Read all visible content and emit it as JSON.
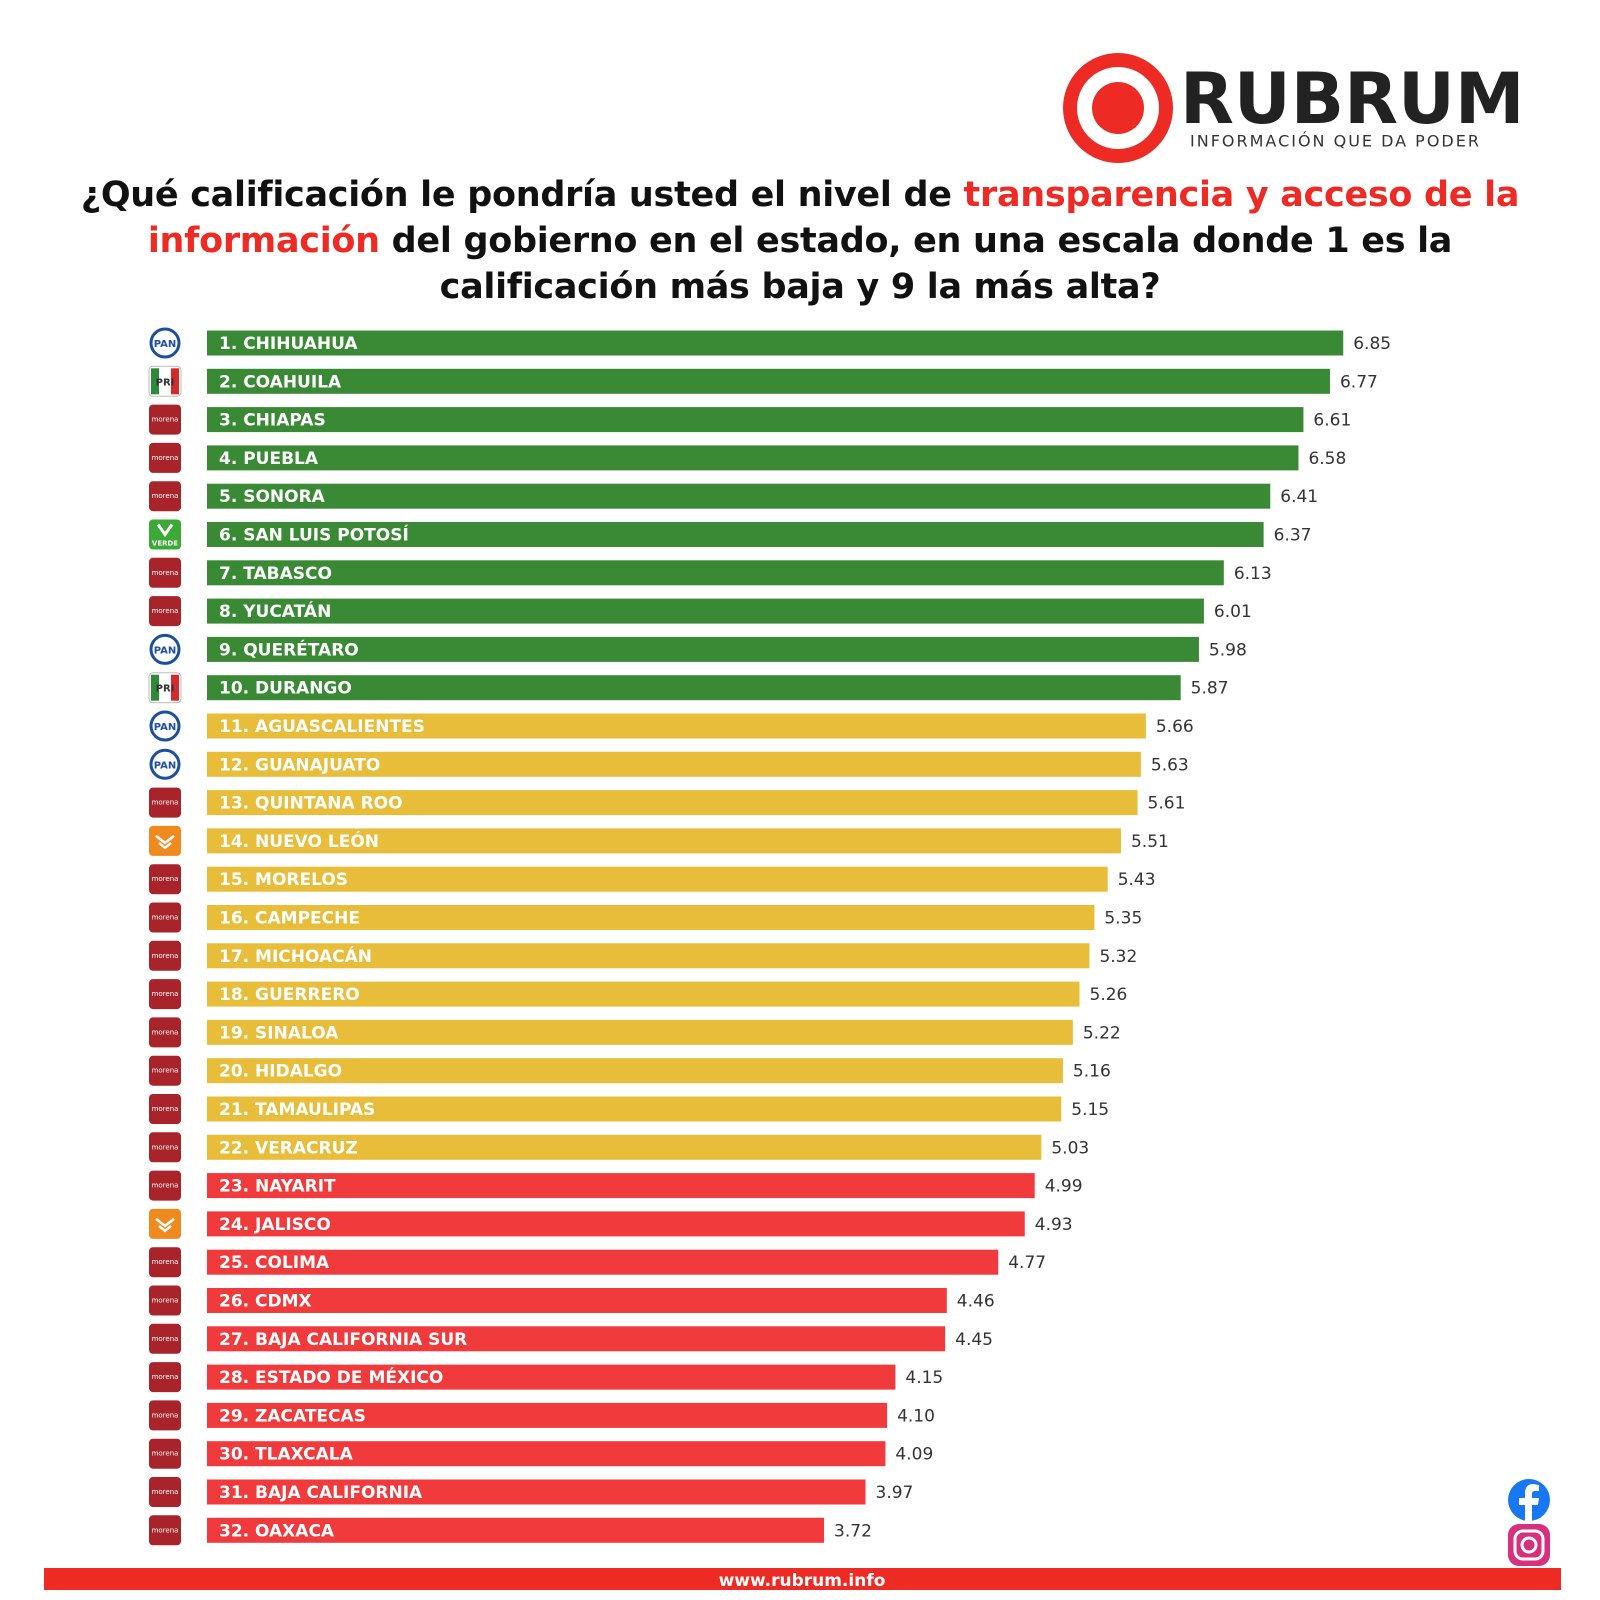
{
  "chart_data": {
    "type": "bar",
    "orientation": "horizontal",
    "brand": "RUBRUM",
    "tagline": "INFORMACIÓN QUE DA PODER",
    "title": [
      "¿Qué calificación le pondría usted el nivel de ",
      "transparencia y acceso de la información",
      " del gobierno en el estado, en una escala donde 1 es la calificación más baja y 9 la más alta?"
    ],
    "footer": "www.rubrum.info",
    "categories": [
      "1. CHIHUAHUA",
      "2. COAHUILA",
      "3. CHIAPAS",
      "4. PUEBLA",
      "5. SONORA",
      "6. SAN LUIS POTOSÍ",
      "7. TABASCO",
      "8. YUCATÁN",
      "9. QUERÉTARO",
      "10. DURANGO",
      "11. AGUASCALIENTES",
      "12. GUANAJUATO",
      "13. QUINTANA ROO",
      "14. NUEVO LEÓN",
      "15. MORELOS",
      "16. CAMPECHE",
      "17. MICHOACÁN",
      "18. GUERRERO",
      "19. SINALOA",
      "20. HIDALGO",
      "21. TAMAULIPAS",
      "22. VERACRUZ",
      "23. NAYARIT",
      "24. JALISCO",
      "25. COLIMA",
      "26. CDMX",
      "27. BAJA CALIFORNIA SUR",
      "28. ESTADO DE MÉXICO",
      "29. ZACATECAS",
      "30. TLAXCALA",
      "31. BAJA CALIFORNIA",
      "32. OAXACA"
    ],
    "values": [
      6.85,
      6.77,
      6.61,
      6.58,
      6.41,
      6.37,
      6.13,
      6.01,
      5.98,
      5.87,
      5.66,
      5.63,
      5.61,
      5.51,
      5.43,
      5.35,
      5.32,
      5.26,
      5.22,
      5.16,
      5.15,
      5.03,
      4.99,
      4.93,
      4.77,
      4.46,
      4.45,
      4.15,
      4.1,
      4.09,
      3.97,
      3.72
    ],
    "value_labels": [
      "6.85",
      "6.77",
      "6.61",
      "6.58",
      "6.41",
      "6.37",
      "6.13",
      "6.01",
      "5.98",
      "5.87",
      "5.66",
      "5.63",
      "5.61",
      "5.51",
      "5.43",
      "5.35",
      "5.32",
      "5.26",
      "5.22",
      "5.16",
      "5.15",
      "5.03",
      "4.99",
      "4.93",
      "4.77",
      "4.46",
      "4.45",
      "4.15",
      "4.10",
      "4.09",
      "3.97",
      "3.72"
    ],
    "parties": [
      "PAN",
      "PRI",
      "morena",
      "morena",
      "morena",
      "VERDE",
      "morena",
      "morena",
      "PAN",
      "PRI",
      "PAN",
      "PAN",
      "morena",
      null,
      "morena",
      "morena",
      "morena",
      "morena",
      "morena",
      "morena",
      "morena",
      "morena",
      "morena",
      null,
      "morena",
      "morena",
      "morena",
      "morena",
      "morena",
      "morena",
      "morena",
      "morena"
    ],
    "colors": [
      "#3a8a35",
      "#3a8a35",
      "#3a8a35",
      "#3a8a35",
      "#3a8a35",
      "#3a8a35",
      "#3a8a35",
      "#3a8a35",
      "#3a8a35",
      "#3a8a35",
      "#e8bd3a",
      "#e8bd3a",
      "#e8bd3a",
      "#e8bd3a",
      "#e8bd3a",
      "#e8bd3a",
      "#e8bd3a",
      "#e8bd3a",
      "#e8bd3a",
      "#e8bd3a",
      "#e8bd3a",
      "#e8bd3a",
      "#f03a3c",
      "#f03a3c",
      "#f03a3c",
      "#f03a3c",
      "#f03a3c",
      "#f03a3c",
      "#f03a3c",
      "#f03a3c",
      "#f03a3c",
      "#f03a3c"
    ],
    "xlim": [
      0,
      8
    ]
  }
}
